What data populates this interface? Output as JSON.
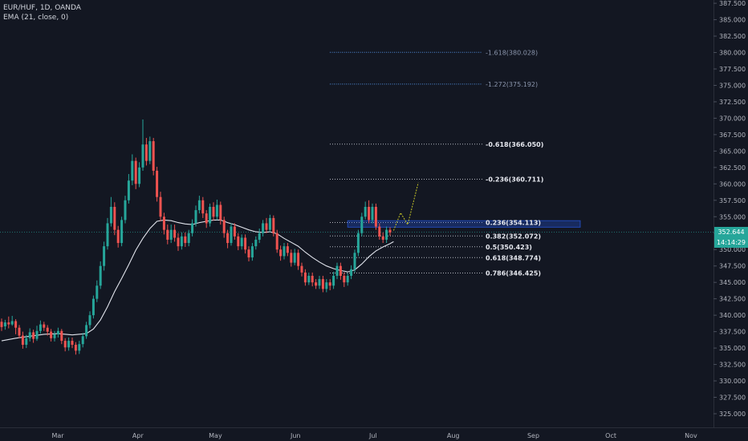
{
  "legend": {
    "symbol": "EUR/HUF, 1D, OANDA",
    "indicator": "EMA (21, close, 0)"
  },
  "price_tag": {
    "price": "352.644",
    "countdown": "14:14:29"
  },
  "colors": {
    "background": "#131722",
    "up": "#26a69a",
    "down": "#ef5350",
    "ema": "#e0e3eb",
    "fib": "#b2b5be",
    "fib_ext": "#4e8ad8",
    "zone": "#2962ff",
    "projection": "#c6c626",
    "axis_text": "#b2b5be"
  },
  "chart_data": {
    "type": "candlestick",
    "y_axis": {
      "range": [
        322.8,
        388.0
      ],
      "ticks": [
        "325.000",
        "327.500",
        "330.000",
        "332.500",
        "335.000",
        "337.500",
        "340.000",
        "342.500",
        "345.000",
        "347.500",
        "350.000",
        "352.500",
        "355.000",
        "357.500",
        "360.000",
        "362.500",
        "365.000",
        "367.500",
        "370.000",
        "372.500",
        "375.000",
        "377.500",
        "380.000",
        "382.500",
        "385.000",
        "387.500"
      ]
    },
    "x_axis": {
      "labels": [
        {
          "label": "Mar",
          "day": 58
        },
        {
          "label": "Apr",
          "day": 89
        },
        {
          "label": "May",
          "day": 119
        },
        {
          "label": "Jun",
          "day": 150
        },
        {
          "label": "Jul",
          "day": 180
        },
        {
          "label": "Aug",
          "day": 211
        },
        {
          "label": "Sep",
          "day": 242
        },
        {
          "label": "Oct",
          "day": 272
        },
        {
          "label": "Nov",
          "day": 303
        }
      ]
    },
    "candles": [
      [
        339.0,
        338.2,
        339.5,
        337.6
      ],
      [
        338.3,
        338.9,
        339.3,
        337.8
      ],
      [
        338.9,
        338.6,
        339.8,
        338.0
      ],
      [
        338.6,
        339.1,
        339.9,
        338.4
      ],
      [
        339.1,
        338.1,
        339.4,
        337.1
      ],
      [
        338.1,
        336.9,
        338.5,
        336.5
      ],
      [
        336.9,
        335.5,
        337.5,
        334.9
      ],
      [
        335.5,
        336.5,
        337.0,
        335.0
      ],
      [
        336.5,
        337.4,
        338.0,
        336.0
      ],
      [
        337.4,
        336.4,
        337.8,
        335.8
      ],
      [
        336.4,
        337.6,
        338.4,
        336.1
      ],
      [
        337.6,
        338.6,
        339.2,
        337.2
      ],
      [
        338.6,
        338.1,
        339.0,
        337.6
      ],
      [
        338.1,
        337.5,
        338.5,
        336.9
      ],
      [
        337.5,
        336.5,
        337.9,
        336.0
      ],
      [
        336.5,
        337.1,
        337.6,
        336.0
      ],
      [
        337.1,
        337.6,
        338.1,
        336.6
      ],
      [
        337.6,
        336.1,
        337.9,
        335.6
      ],
      [
        336.1,
        335.1,
        336.5,
        334.5
      ],
      [
        335.1,
        336.1,
        336.6,
        334.6
      ],
      [
        336.1,
        335.5,
        336.6,
        335.0
      ],
      [
        335.5,
        334.6,
        335.9,
        334.0
      ],
      [
        334.6,
        335.6,
        336.1,
        334.1
      ],
      [
        335.6,
        336.8,
        337.3,
        335.1
      ],
      [
        336.8,
        338.5,
        339.0,
        336.4
      ],
      [
        338.5,
        340.0,
        340.6,
        338.0
      ],
      [
        340.0,
        342.5,
        343.0,
        339.5
      ],
      [
        342.5,
        344.5,
        345.3,
        342.0
      ],
      [
        344.5,
        347.5,
        348.2,
        344.0
      ],
      [
        347.5,
        350.5,
        351.2,
        346.8
      ],
      [
        350.5,
        354.0,
        354.8,
        350.0
      ],
      [
        354.0,
        356.5,
        358.0,
        353.5
      ],
      [
        356.5,
        353.0,
        357.2,
        352.2
      ],
      [
        353.0,
        351.0,
        353.6,
        350.3
      ],
      [
        351.0,
        354.5,
        355.0,
        350.5
      ],
      [
        354.5,
        357.5,
        358.2,
        354.0
      ],
      [
        357.5,
        360.5,
        361.5,
        357.0
      ],
      [
        360.5,
        363.5,
        364.5,
        359.8
      ],
      [
        363.5,
        360.0,
        364.0,
        359.2
      ],
      [
        360.0,
        362.5,
        363.3,
        359.5
      ],
      [
        362.5,
        366.0,
        369.8,
        362.0
      ],
      [
        366.0,
        363.5,
        367.0,
        362.8
      ],
      [
        363.5,
        366.5,
        367.2,
        363.0
      ],
      [
        366.5,
        362.0,
        367.0,
        361.3
      ],
      [
        362.0,
        358.0,
        362.6,
        357.3
      ],
      [
        358.0,
        355.0,
        358.8,
        354.3
      ],
      [
        355.0,
        353.0,
        355.6,
        352.3
      ],
      [
        353.0,
        351.5,
        353.8,
        350.8
      ],
      [
        351.5,
        353.0,
        353.8,
        351.0
      ],
      [
        353.0,
        351.8,
        353.8,
        351.2
      ],
      [
        351.8,
        350.5,
        352.5,
        349.8
      ],
      [
        350.5,
        352.0,
        352.6,
        350.0
      ],
      [
        352.0,
        351.0,
        352.6,
        350.4
      ],
      [
        351.0,
        352.5,
        353.0,
        350.5
      ],
      [
        352.5,
        354.0,
        354.6,
        352.0
      ],
      [
        354.0,
        356.0,
        356.7,
        353.5
      ],
      [
        356.0,
        357.5,
        358.2,
        355.5
      ],
      [
        357.5,
        355.5,
        358.0,
        354.8
      ],
      [
        355.5,
        354.0,
        356.0,
        353.3
      ],
      [
        354.0,
        356.5,
        357.0,
        353.5
      ],
      [
        356.5,
        355.0,
        357.2,
        354.4
      ],
      [
        355.0,
        356.8,
        357.6,
        354.5
      ],
      [
        356.8,
        354.5,
        357.3,
        353.8
      ],
      [
        354.5,
        352.5,
        355.0,
        351.8
      ],
      [
        352.5,
        351.0,
        353.0,
        350.2
      ],
      [
        351.0,
        353.5,
        354.0,
        350.6
      ],
      [
        353.5,
        352.0,
        354.0,
        351.5
      ],
      [
        352.0,
        350.5,
        352.5,
        349.9
      ],
      [
        350.5,
        351.8,
        352.3,
        350.0
      ],
      [
        351.8,
        350.0,
        352.3,
        349.4
      ],
      [
        350.0,
        348.8,
        350.5,
        348.2
      ],
      [
        348.8,
        350.5,
        351.0,
        348.3
      ],
      [
        350.5,
        351.5,
        352.0,
        350.0
      ],
      [
        351.5,
        352.5,
        353.2,
        351.0
      ],
      [
        352.5,
        354.0,
        354.5,
        352.0
      ],
      [
        354.0,
        353.0,
        354.8,
        352.5
      ],
      [
        353.0,
        354.8,
        355.3,
        352.6
      ],
      [
        354.8,
        352.5,
        355.2,
        352.0
      ],
      [
        352.5,
        350.0,
        353.0,
        349.5
      ],
      [
        350.0,
        349.0,
        350.6,
        348.3
      ],
      [
        349.0,
        350.5,
        351.0,
        348.5
      ],
      [
        350.5,
        349.5,
        351.0,
        349.0
      ],
      [
        349.5,
        348.0,
        350.0,
        347.4
      ],
      [
        348.0,
        349.5,
        350.1,
        347.6
      ],
      [
        349.5,
        347.5,
        350.0,
        346.9
      ],
      [
        347.5,
        346.5,
        348.0,
        345.9
      ],
      [
        346.5,
        345.0,
        347.0,
        344.5
      ],
      [
        345.0,
        346.0,
        346.5,
        344.6
      ],
      [
        346.0,
        345.0,
        346.5,
        344.4
      ],
      [
        345.0,
        344.5,
        345.5,
        344.0
      ],
      [
        344.5,
        345.5,
        346.0,
        344.0
      ],
      [
        345.5,
        344.0,
        346.0,
        343.5
      ],
      [
        344.0,
        345.0,
        345.5,
        343.5
      ],
      [
        345.0,
        344.5,
        345.5,
        343.8
      ],
      [
        344.5,
        346.0,
        346.6,
        344.0
      ],
      [
        346.0,
        347.5,
        348.0,
        345.5
      ],
      [
        347.5,
        346.0,
        348.0,
        345.4
      ],
      [
        346.0,
        345.0,
        346.5,
        344.3
      ],
      [
        345.0,
        346.0,
        346.4,
        344.5
      ],
      [
        346.0,
        347.0,
        347.6,
        345.5
      ],
      [
        347.0,
        349.5,
        350.0,
        346.5
      ],
      [
        349.5,
        352.5,
        353.0,
        349.0
      ],
      [
        352.5,
        355.0,
        355.6,
        352.0
      ],
      [
        355.0,
        356.5,
        357.3,
        354.6
      ],
      [
        356.5,
        354.5,
        357.5,
        354.0
      ],
      [
        354.5,
        356.5,
        357.0,
        354.0
      ],
      [
        356.5,
        353.5,
        357.0,
        353.0
      ],
      [
        353.5,
        352.0,
        354.0,
        351.5
      ],
      [
        352.0,
        351.5,
        352.6,
        351.0
      ],
      [
        351.5,
        353.0,
        353.5,
        351.0
      ],
      [
        353.0,
        352.6,
        353.4,
        352.1
      ]
    ],
    "ema": [
      [
        0,
        336.1
      ],
      [
        4,
        336.5
      ],
      [
        8,
        336.8
      ],
      [
        12,
        337.1
      ],
      [
        16,
        337.2
      ],
      [
        20,
        337.0
      ],
      [
        24,
        337.2
      ],
      [
        26,
        337.9
      ],
      [
        28,
        339.3
      ],
      [
        30,
        341.3
      ],
      [
        32,
        343.6
      ],
      [
        34,
        345.6
      ],
      [
        36,
        347.7
      ],
      [
        38,
        349.9
      ],
      [
        40,
        351.7
      ],
      [
        42,
        353.2
      ],
      [
        44,
        354.3
      ],
      [
        46,
        354.5
      ],
      [
        48,
        354.4
      ],
      [
        50,
        354.1
      ],
      [
        52,
        353.9
      ],
      [
        54,
        353.8
      ],
      [
        56,
        354.1
      ],
      [
        58,
        354.3
      ],
      [
        60,
        354.5
      ],
      [
        62,
        354.5
      ],
      [
        64,
        354.1
      ],
      [
        66,
        353.8
      ],
      [
        68,
        353.4
      ],
      [
        70,
        353.0
      ],
      [
        72,
        352.7
      ],
      [
        74,
        352.6
      ],
      [
        76,
        352.7
      ],
      [
        78,
        352.4
      ],
      [
        80,
        351.7
      ],
      [
        82,
        351.1
      ],
      [
        84,
        350.5
      ],
      [
        86,
        349.6
      ],
      [
        88,
        348.8
      ],
      [
        90,
        348.1
      ],
      [
        92,
        347.5
      ],
      [
        94,
        347.1
      ],
      [
        96,
        346.8
      ],
      [
        98,
        346.6
      ],
      [
        100,
        346.9
      ],
      [
        102,
        347.8
      ],
      [
        104,
        348.9
      ],
      [
        106,
        349.8
      ],
      [
        108,
        350.4
      ],
      [
        110,
        350.9
      ],
      [
        111,
        351.2
      ]
    ],
    "fib_levels": [
      {
        "label": "-1.618(380.028)",
        "value": 380.028,
        "style": "ext"
      },
      {
        "label": "-1.272(375.192)",
        "value": 375.192,
        "style": "ext"
      },
      {
        "label": "-0.618(366.050)",
        "value": 366.05,
        "style": "main"
      },
      {
        "label": "-0.236(360.711)",
        "value": 360.711,
        "style": "main"
      },
      {
        "label": "0.236(354.113)",
        "value": 354.113,
        "style": "main"
      },
      {
        "label": "0.382(352.072)",
        "value": 352.072,
        "style": "main"
      },
      {
        "label": "0.5(350.423)",
        "value": 350.423,
        "style": "main"
      },
      {
        "label": "0.618(348.774)",
        "value": 348.774,
        "style": "main"
      },
      {
        "label": "0.786(346.425)",
        "value": 346.425,
        "style": "main"
      }
    ],
    "zone": {
      "from": 353.4,
      "to": 354.4
    },
    "projection": [
      [
        111,
        352.9
      ],
      [
        113,
        355.6
      ],
      [
        115,
        353.8
      ],
      [
        118,
        360.2
      ]
    ],
    "last_price": 352.644
  }
}
